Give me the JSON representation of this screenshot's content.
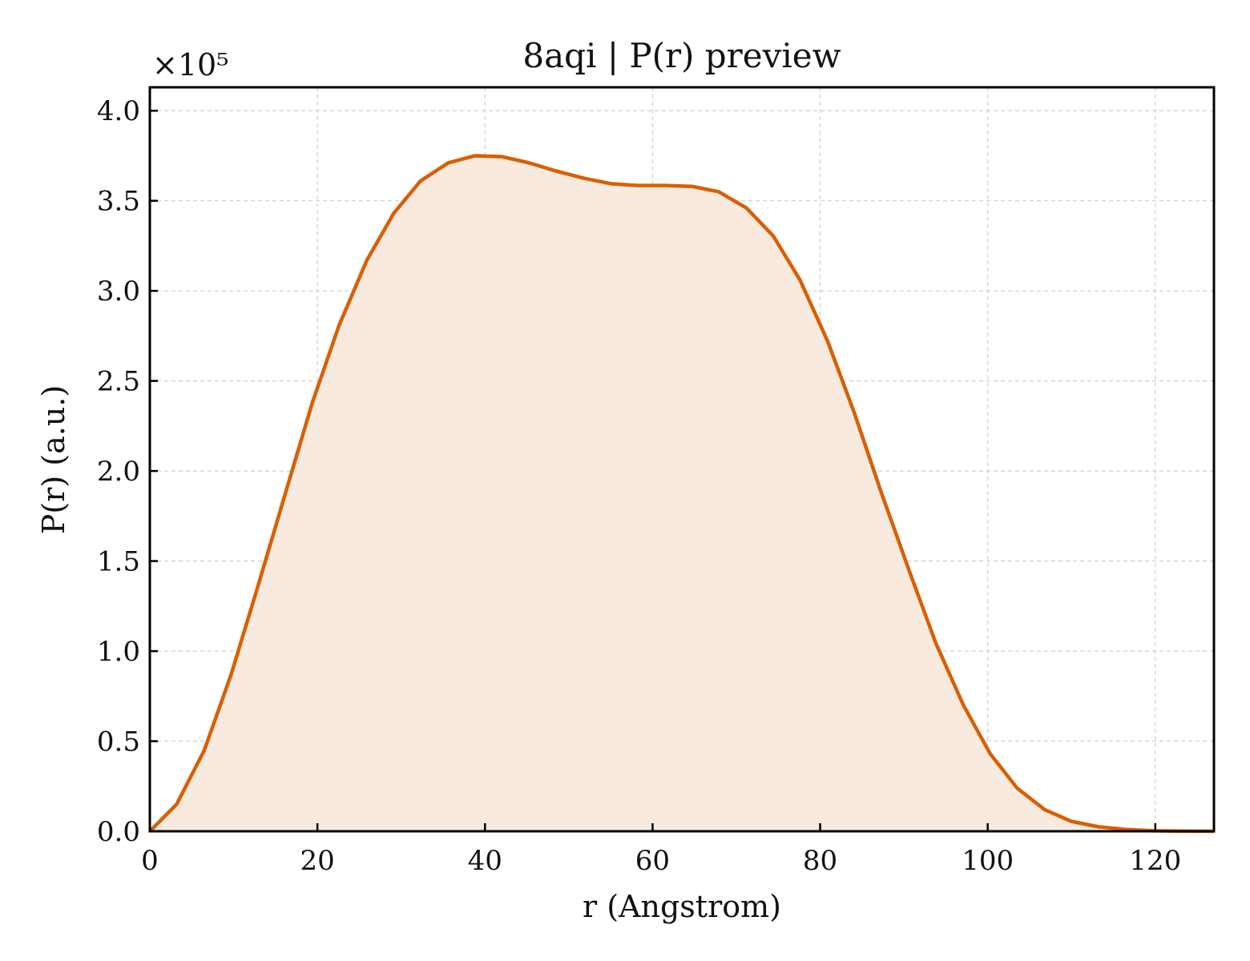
{
  "chart_data": {
    "type": "area",
    "title": "8aqi | P(r) preview",
    "xlabel": "r (Angstrom)",
    "ylabel": "P(r) (a.u.)",
    "y_multiplier_label": "×10⁵",
    "y_multiplier": 100000,
    "xlim": [
      0,
      127
    ],
    "ylim": [
      0,
      4.13
    ],
    "x_ticks": [
      0,
      20,
      40,
      60,
      80,
      100,
      120
    ],
    "x_tick_labels": [
      "0",
      "20",
      "40",
      "60",
      "80",
      "100",
      "120"
    ],
    "y_ticks": [
      0,
      0.5,
      1.0,
      1.5,
      2.0,
      2.5,
      3.0,
      3.5,
      4.0
    ],
    "y_tick_labels": [
      "0.0",
      "0.5",
      "1.0",
      "1.5",
      "2.0",
      "2.5",
      "3.0",
      "3.5",
      "4.0"
    ],
    "grid": true,
    "colors": {
      "line": "#d95f02",
      "fill": "#f9eadf"
    },
    "series": [
      {
        "x": [
          0,
          3.2,
          6.5,
          9.7,
          12.9,
          16.2,
          19.4,
          22.6,
          25.9,
          29.1,
          32.3,
          35.6,
          38.8,
          42.0,
          45.3,
          48.5,
          51.8,
          55.0,
          58.2,
          61.5,
          64.7,
          67.9,
          71.2,
          74.4,
          77.6,
          80.9,
          84.1,
          87.3,
          90.6,
          93.8,
          97.1,
          100.3,
          103.5,
          106.8,
          110.0,
          113.2,
          116.5,
          119.7,
          122.9,
          127.0
        ],
        "y": [
          0.0,
          0.15,
          0.45,
          0.87,
          1.36,
          1.88,
          2.38,
          2.81,
          3.17,
          3.43,
          3.61,
          3.71,
          3.75,
          3.745,
          3.71,
          3.665,
          3.625,
          3.595,
          3.585,
          3.585,
          3.58,
          3.55,
          3.46,
          3.305,
          3.06,
          2.72,
          2.32,
          1.88,
          1.45,
          1.045,
          0.7,
          0.43,
          0.24,
          0.12,
          0.055,
          0.025,
          0.01,
          0.003,
          0.001,
          0.0
        ]
      }
    ]
  }
}
